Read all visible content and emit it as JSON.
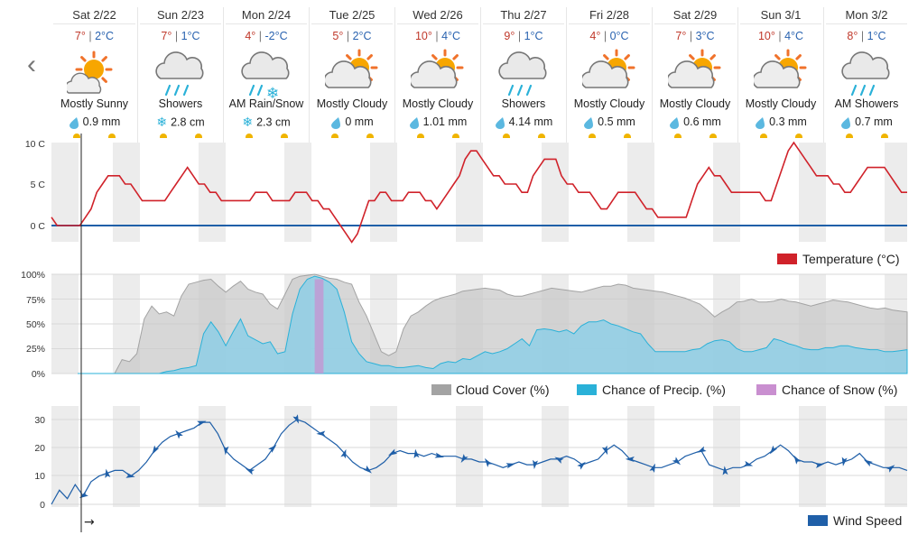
{
  "nav": {
    "prev_icon": "chevron-left-icon",
    "prev_glyph": "‹"
  },
  "days": [
    {
      "date": "Sat 2/22",
      "hi": "7°",
      "lo": "2°C",
      "condition": "Mostly Sunny",
      "icon": "mostly-sunny-icon",
      "precip": "0.9 mm",
      "precip_icon": "raindrop-icon"
    },
    {
      "date": "Sun 2/23",
      "hi": "7°",
      "lo": "1°C",
      "condition": "Showers",
      "icon": "showers-icon",
      "precip": "2.8 cm",
      "precip_icon": "snowflake-icon"
    },
    {
      "date": "Mon 2/24",
      "hi": "4°",
      "lo": "-2°C",
      "condition": "AM Rain/Snow",
      "icon": "rain-snow-icon",
      "precip": "2.3 cm",
      "precip_icon": "snowflake-icon"
    },
    {
      "date": "Tue 2/25",
      "hi": "5°",
      "lo": "2°C",
      "condition": "Mostly Cloudy",
      "icon": "mostly-cloudy-icon",
      "precip": "0 mm",
      "precip_icon": "raindrop-icon"
    },
    {
      "date": "Wed 2/26",
      "hi": "10°",
      "lo": "4°C",
      "condition": "Mostly Cloudy",
      "icon": "mostly-cloudy-icon",
      "precip": "1.01 mm",
      "precip_icon": "raindrop-icon"
    },
    {
      "date": "Thu 2/27",
      "hi": "9°",
      "lo": "1°C",
      "condition": "Showers",
      "icon": "showers-icon",
      "precip": "4.14 mm",
      "precip_icon": "raindrop-icon"
    },
    {
      "date": "Fri 2/28",
      "hi": "4°",
      "lo": "0°C",
      "condition": "Mostly Cloudy",
      "icon": "mostly-cloudy-icon",
      "precip": "0.5 mm",
      "precip_icon": "raindrop-icon"
    },
    {
      "date": "Sat 2/29",
      "hi": "7°",
      "lo": "3°C",
      "condition": "Mostly Cloudy",
      "icon": "mostly-cloudy-icon",
      "precip": "0.6 mm",
      "precip_icon": "raindrop-icon"
    },
    {
      "date": "Sun 3/1",
      "hi": "10°",
      "lo": "4°C",
      "condition": "Mostly Cloudy",
      "icon": "mostly-cloudy-icon",
      "precip": "0.3 mm",
      "precip_icon": "raindrop-icon"
    },
    {
      "date": "Mon 3/2",
      "hi": "8°",
      "lo": "1°C",
      "condition": "AM Showers",
      "icon": "showers-icon",
      "precip": "0.7 mm",
      "precip_icon": "raindrop-icon"
    }
  ],
  "temperature_panel": {
    "ticks": [
      "10 C",
      "5 C",
      "0 C"
    ],
    "legend": "Temperature (°C)",
    "color": "#d0222a",
    "freezing_color": "#1f5fa8"
  },
  "cloud_panel": {
    "ticks": [
      "100%",
      "75%",
      "50%",
      "25%",
      "0%"
    ],
    "legend": {
      "cloud": "Cloud Cover (%)",
      "precip": "Chance of Precip. (%)",
      "snow": "Chance of Snow (%)"
    },
    "colors": {
      "cloud": "#a3a3a3",
      "precip": "#2ab1d8",
      "snow": "#c98fd0"
    }
  },
  "wind_panel": {
    "ticks": [
      "30",
      "20",
      "10",
      "0"
    ],
    "legend": "Wind Speed",
    "color": "#1f5fa8",
    "now_arrow": "→"
  },
  "chart_data": [
    {
      "type": "line",
      "ylim": [
        -2,
        10
      ],
      "series": [
        {
          "name": "Temperature (°C)",
          "values": [
            1,
            0,
            0,
            0,
            0,
            0,
            1,
            2,
            4,
            5,
            6,
            6,
            6,
            5,
            5,
            4,
            3,
            3,
            3,
            3,
            3,
            4,
            5,
            6,
            7,
            6,
            5,
            5,
            4,
            4,
            3,
            3,
            3,
            3,
            3,
            3,
            4,
            4,
            4,
            3,
            3,
            3,
            3,
            4,
            4,
            4,
            3,
            3,
            2,
            2,
            1,
            0,
            -1,
            -2,
            -1,
            1,
            3,
            3,
            4,
            4,
            3,
            3,
            3,
            4,
            4,
            4,
            3,
            3,
            2,
            3,
            4,
            5,
            6,
            8,
            9,
            9,
            8,
            7,
            6,
            6,
            5,
            5,
            5,
            4,
            4,
            6,
            7,
            8,
            8,
            8,
            6,
            5,
            5,
            4,
            4,
            4,
            3,
            2,
            2,
            3,
            4,
            4,
            4,
            4,
            3,
            2,
            2,
            1,
            1,
            1,
            1,
            1,
            1,
            3,
            5,
            6,
            7,
            6,
            6,
            5,
            4,
            4,
            4,
            4,
            4,
            4,
            3,
            3,
            5,
            7,
            9,
            10,
            9,
            8,
            7,
            6,
            6,
            6,
            5,
            5,
            4,
            4,
            5,
            6,
            7,
            7,
            7,
            7,
            6,
            5,
            4,
            4
          ]
        }
      ]
    },
    {
      "type": "area",
      "ylim": [
        0,
        100
      ],
      "series": [
        {
          "name": "Cloud Cover (%)",
          "values": [
            0,
            0,
            0,
            0,
            0,
            0,
            14,
            12,
            20,
            55,
            68,
            60,
            62,
            58,
            78,
            90,
            92,
            94,
            95,
            88,
            82,
            88,
            93,
            85,
            82,
            80,
            70,
            65,
            80,
            95,
            98,
            99,
            100,
            98,
            96,
            95,
            92,
            90,
            72,
            58,
            40,
            22,
            18,
            22,
            45,
            58,
            62,
            68,
            73,
            76,
            78,
            80,
            83,
            84,
            85,
            86,
            85,
            84,
            80,
            78,
            78,
            80,
            82,
            84,
            86,
            85,
            84,
            83,
            82,
            84,
            86,
            88,
            88,
            90,
            89,
            86,
            85,
            84,
            83,
            82,
            80,
            78,
            76,
            73,
            70,
            64,
            57,
            62,
            66,
            72,
            73,
            75,
            72,
            72,
            73,
            75,
            73,
            72,
            70,
            68,
            70,
            72,
            74,
            73,
            72,
            70,
            68,
            66,
            65,
            66,
            64,
            63,
            62
          ]
        },
        {
          "name": "Chance of Precip. (%)",
          "values": [
            0,
            0,
            0,
            0,
            0,
            0,
            0,
            0,
            0,
            0,
            0,
            0,
            2,
            3,
            5,
            6,
            8,
            40,
            52,
            42,
            28,
            42,
            55,
            38,
            34,
            30,
            32,
            20,
            22,
            60,
            85,
            95,
            98,
            96,
            92,
            85,
            62,
            32,
            20,
            12,
            10,
            8,
            8,
            6,
            6,
            7,
            8,
            6,
            5,
            10,
            12,
            11,
            15,
            14,
            18,
            22,
            20,
            22,
            25,
            30,
            35,
            28,
            44,
            45,
            44,
            42,
            44,
            40,
            48,
            52,
            52,
            54,
            50,
            48,
            45,
            42,
            40,
            30,
            22,
            22,
            22,
            22,
            22,
            24,
            25,
            30,
            33,
            34,
            32,
            25,
            22,
            22,
            24,
            26,
            35,
            33,
            30,
            28,
            25,
            24,
            24,
            26,
            26,
            28,
            28,
            26,
            25,
            24,
            24,
            22,
            22,
            23,
            24
          ]
        },
        {
          "name": "Chance of Snow (%)",
          "values": [
            0,
            0,
            0,
            0,
            0,
            0,
            0,
            0,
            0,
            0,
            0,
            0,
            0,
            0,
            0,
            0,
            0,
            0,
            0,
            0,
            0,
            0,
            0,
            0,
            0,
            0,
            0,
            0,
            0,
            0,
            0,
            0,
            95,
            95,
            0,
            0,
            0,
            0,
            0,
            0,
            0,
            0,
            0,
            0,
            0,
            0,
            0,
            0,
            0,
            0,
            0,
            0,
            0,
            0,
            0,
            0,
            0,
            0,
            0,
            0,
            0,
            0,
            0,
            0,
            0,
            0,
            0,
            0,
            0,
            0,
            0,
            0,
            0,
            0,
            0,
            0,
            0,
            0,
            0,
            0,
            0,
            0,
            0,
            0,
            0,
            0,
            0,
            0,
            0,
            0,
            0,
            0,
            0,
            0,
            0,
            0,
            0,
            0,
            0,
            0,
            0,
            0,
            0,
            0,
            0,
            0,
            0,
            0,
            0,
            0,
            0,
            0,
            0
          ]
        }
      ]
    },
    {
      "type": "line",
      "ylim": [
        0,
        32
      ],
      "series": [
        {
          "name": "Wind Speed",
          "values": [
            0,
            5,
            2,
            7,
            3,
            8,
            10,
            11,
            12,
            12,
            10,
            12,
            15,
            19,
            22,
            24,
            25,
            26,
            27,
            29,
            29,
            25,
            19,
            16,
            14,
            12,
            14,
            16,
            20,
            25,
            28,
            30,
            29,
            27,
            25,
            23,
            21,
            18,
            15,
            13,
            12,
            13,
            15,
            18,
            19,
            18,
            18,
            17,
            18,
            17,
            17,
            17,
            16,
            16,
            15,
            15,
            14,
            13,
            14,
            15,
            14,
            14,
            15,
            16,
            16,
            17,
            16,
            14,
            15,
            16,
            19,
            21,
            19,
            16,
            15,
            14,
            13,
            13,
            14,
            15,
            17,
            18,
            19,
            14,
            13,
            12,
            13,
            13,
            14,
            16,
            17,
            19,
            21,
            19,
            16,
            15,
            15,
            14,
            15,
            14,
            15,
            16,
            18,
            15,
            14,
            13,
            13,
            13,
            12
          ]
        }
      ]
    }
  ]
}
